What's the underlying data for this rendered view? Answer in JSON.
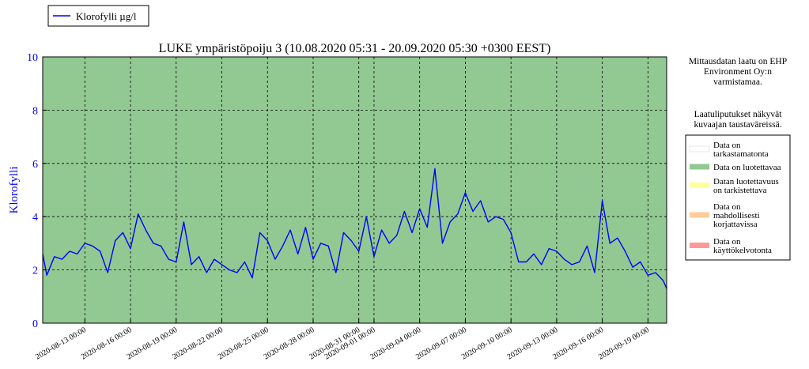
{
  "chart_data": {
    "type": "line",
    "title": "LUKE ympäristöpoiju 3 (10.08.2020 05:31 - 20.09.2020 05:30 +0300 EEST)",
    "ylabel": "Klorofylli",
    "xlabel": "",
    "ylim": [
      0,
      10
    ],
    "yticks": [
      0,
      2,
      4,
      6,
      8,
      10
    ],
    "xlim": [
      "2020-08-10 05:31",
      "2020-09-20 05:30"
    ],
    "xticks": [
      "2020-08-13 00:00",
      "2020-08-16 00:00",
      "2020-08-19 00:00",
      "2020-08-22 00:00",
      "2020-08-25 00:00",
      "2020-08-28 00:00",
      "2020-08-31 00:00",
      "2020-09-01 00:00",
      "2020-09-04 00:00",
      "2020-09-07 00:00",
      "2020-09-10 00:00",
      "2020-09-13 00:00",
      "2020-09-16 00:00",
      "2020-09-19 00:00"
    ],
    "grid": true,
    "legend_position": "top-left",
    "series": [
      {
        "name": "Klorofylli µg/l",
        "color": "#0000ff",
        "x": [
          "2020-08-10 05:31",
          "2020-08-10 12:00",
          "2020-08-11 00:00",
          "2020-08-11 12:00",
          "2020-08-12 00:00",
          "2020-08-12 12:00",
          "2020-08-13 00:00",
          "2020-08-13 12:00",
          "2020-08-14 00:00",
          "2020-08-14 12:00",
          "2020-08-15 00:00",
          "2020-08-15 12:00",
          "2020-08-16 00:00",
          "2020-08-16 12:00",
          "2020-08-17 00:00",
          "2020-08-17 12:00",
          "2020-08-18 00:00",
          "2020-08-18 12:00",
          "2020-08-19 00:00",
          "2020-08-19 12:00",
          "2020-08-20 00:00",
          "2020-08-20 12:00",
          "2020-08-21 00:00",
          "2020-08-21 12:00",
          "2020-08-22 00:00",
          "2020-08-22 12:00",
          "2020-08-23 00:00",
          "2020-08-23 12:00",
          "2020-08-24 00:00",
          "2020-08-24 12:00",
          "2020-08-25 00:00",
          "2020-08-25 12:00",
          "2020-08-26 00:00",
          "2020-08-26 12:00",
          "2020-08-27 00:00",
          "2020-08-27 12:00",
          "2020-08-28 00:00",
          "2020-08-28 12:00",
          "2020-08-29 00:00",
          "2020-08-29 12:00",
          "2020-08-30 00:00",
          "2020-08-30 12:00",
          "2020-08-31 00:00",
          "2020-08-31 12:00",
          "2020-09-01 00:00",
          "2020-09-01 12:00",
          "2020-09-02 00:00",
          "2020-09-02 12:00",
          "2020-09-03 00:00",
          "2020-09-03 12:00",
          "2020-09-04 00:00",
          "2020-09-04 12:00",
          "2020-09-05 00:00",
          "2020-09-05 12:00",
          "2020-09-06 00:00",
          "2020-09-06 12:00",
          "2020-09-07 00:00",
          "2020-09-07 12:00",
          "2020-09-08 00:00",
          "2020-09-08 12:00",
          "2020-09-09 00:00",
          "2020-09-09 12:00",
          "2020-09-10 00:00",
          "2020-09-10 12:00",
          "2020-09-11 00:00",
          "2020-09-11 12:00",
          "2020-09-12 00:00",
          "2020-09-12 12:00",
          "2020-09-13 00:00",
          "2020-09-13 12:00",
          "2020-09-14 00:00",
          "2020-09-14 12:00",
          "2020-09-15 00:00",
          "2020-09-15 12:00",
          "2020-09-16 00:00",
          "2020-09-16 12:00",
          "2020-09-17 00:00",
          "2020-09-17 12:00",
          "2020-09-18 00:00",
          "2020-09-18 12:00",
          "2020-09-19 00:00",
          "2020-09-19 12:00",
          "2020-09-20 00:00",
          "2020-09-20 05:30"
        ],
        "y": [
          2.6,
          1.8,
          2.5,
          2.4,
          2.7,
          2.6,
          3.0,
          2.9,
          2.7,
          1.9,
          3.1,
          3.4,
          2.8,
          4.1,
          3.5,
          3.0,
          2.9,
          2.4,
          2.3,
          3.8,
          2.2,
          2.5,
          1.9,
          2.4,
          2.2,
          2.0,
          1.9,
          2.3,
          1.7,
          3.4,
          3.1,
          2.4,
          2.9,
          3.5,
          2.6,
          3.6,
          2.4,
          3.0,
          2.9,
          1.9,
          3.4,
          3.1,
          2.7,
          4.0,
          2.5,
          3.5,
          3.0,
          3.3,
          4.2,
          3.4,
          4.3,
          3.6,
          5.8,
          3.0,
          3.8,
          4.1,
          4.9,
          4.2,
          4.6,
          3.8,
          4.0,
          3.9,
          3.4,
          2.3,
          2.3,
          2.6,
          2.2,
          2.8,
          2.7,
          2.4,
          2.2,
          2.3,
          2.9,
          1.9,
          4.6,
          3.0,
          3.2,
          2.7,
          2.1,
          2.3,
          1.8,
          1.9,
          1.6,
          1.3
        ]
      }
    ]
  },
  "side_panel": {
    "note": [
      "Mittausdatan laatu on EHP",
      "Environment Oy:n",
      "varmistamaa."
    ],
    "flag_note": [
      "Laatuliputukset näkyvät",
      "kuvaajan taustaväreissä."
    ]
  },
  "quality_legend": [
    {
      "lines": [
        "Data on",
        "tarkastamatonta"
      ],
      "color": "#ffffff"
    },
    {
      "lines": [
        "Data on luotettavaa"
      ],
      "color": "#92c992"
    },
    {
      "lines": [
        "Datan luotettavuus",
        "on tarkistettava"
      ],
      "color": "#ffff99"
    },
    {
      "lines": [
        "Data on",
        "mahdollisesti",
        "korjattavissa"
      ],
      "color": "#ffcc99"
    },
    {
      "lines": [
        "Data on",
        "käyttökelvotonta"
      ],
      "color": "#ff9999"
    }
  ],
  "colors": {
    "plot_background": "#92c992",
    "line": "#0000ff",
    "ytick_labels": "#0000ff"
  }
}
